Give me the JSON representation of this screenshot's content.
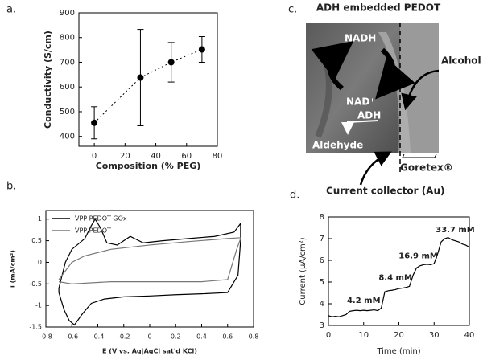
{
  "panels": [
    "a.",
    "b.",
    "c.",
    "d."
  ],
  "diagram": {
    "title": "ADH embedded PEDOT",
    "labels": [
      "NADH",
      "NAD⁺",
      "ADH",
      "Aldehyde",
      "Alcohol",
      "Goretex®",
      "Current collector (Au)"
    ]
  },
  "chart_data": [
    {
      "type": "scatter",
      "x_label": "Composition (% PEG)",
      "y_label": "Conductivity (S/cm)",
      "x": [
        0,
        30,
        50,
        70
      ],
      "values": [
        455,
        638,
        700,
        752
      ],
      "errors": [
        65,
        195,
        80,
        52
      ],
      "color": "#000000",
      "line_style": "dotted",
      "xlim": [
        -10,
        80
      ],
      "xticks": [
        0,
        20,
        40,
        60,
        80
      ],
      "ylim": [
        360,
        900
      ],
      "yticks": [
        400,
        500,
        600,
        700,
        800,
        900
      ]
    },
    {
      "type": "line",
      "x_label": "E (V vs. Ag|AgCl sat'd KCl)",
      "y_label": "i (mA/cm²)",
      "legend": "upper left",
      "series": [
        {
          "name": "VPP PEDOT GOx",
          "color": "#000000",
          "x": [
            -0.7,
            -0.65,
            -0.6,
            -0.5,
            -0.45,
            -0.42,
            -0.38,
            -0.33,
            -0.25,
            -0.15,
            -0.05,
            0.1,
            0.3,
            0.5,
            0.65,
            0.7,
            0.7,
            0.68,
            0.6,
            0.4,
            0.2,
            0,
            -0.2,
            -0.35,
            -0.45,
            -0.52,
            -0.58,
            -0.62,
            -0.66,
            -0.7,
            -0.7
          ],
          "values": [
            -0.6,
            0,
            0.3,
            0.55,
            0.85,
            1.0,
            0.8,
            0.45,
            0.4,
            0.6,
            0.45,
            0.5,
            0.55,
            0.6,
            0.7,
            0.9,
            0.5,
            -0.3,
            -0.7,
            -0.73,
            -0.75,
            -0.78,
            -0.8,
            -0.85,
            -0.95,
            -1.2,
            -1.45,
            -1.35,
            -1.1,
            -0.7,
            -0.6
          ]
        },
        {
          "name": "VPP PEDOT",
          "color": "#777777",
          "x": [
            -0.7,
            -0.6,
            -0.5,
            -0.3,
            0,
            0.3,
            0.6,
            0.7,
            0.7,
            0.67,
            0.6,
            0.4,
            0,
            -0.3,
            -0.6,
            -0.7
          ],
          "values": [
            -0.4,
            0,
            0.15,
            0.3,
            0.4,
            0.48,
            0.55,
            0.57,
            0.55,
            0.3,
            -0.4,
            -0.45,
            -0.45,
            -0.45,
            -0.5,
            -0.45
          ]
        }
      ],
      "xlim": [
        -0.8,
        0.8
      ],
      "xticks": [
        -0.8,
        -0.6,
        -0.4,
        -0.2,
        0,
        0.2,
        0.4,
        0.6,
        0.8
      ],
      "ylim": [
        -1.5,
        1.2
      ],
      "yticks": [
        -1.5,
        -1,
        -0.5,
        0,
        0.5,
        1
      ]
    },
    {
      "type": "line",
      "x_label": "Time (min)",
      "y_label": "Current (μA/cm²)",
      "annotations": [
        "4.2 mM",
        "8.4 mM",
        "16.9 mM",
        "33.7 mM"
      ],
      "series": [
        {
          "color": "#000000",
          "x": [
            0,
            1,
            2,
            3,
            4,
            5,
            6,
            7,
            8,
            9,
            10,
            11,
            12,
            13,
            14,
            15,
            16,
            17,
            18,
            19,
            20,
            21,
            22,
            23,
            24,
            25,
            26,
            27,
            28,
            29,
            30,
            31,
            32,
            33,
            34,
            35,
            36,
            37,
            38,
            39,
            40
          ],
          "values": [
            3.45,
            3.4,
            3.42,
            3.4,
            3.45,
            3.5,
            3.65,
            3.68,
            3.7,
            3.68,
            3.7,
            3.68,
            3.7,
            3.72,
            3.68,
            3.8,
            4.55,
            4.6,
            4.62,
            4.65,
            4.7,
            4.72,
            4.75,
            4.8,
            5.3,
            5.65,
            5.75,
            5.8,
            5.82,
            5.8,
            5.85,
            6.3,
            6.85,
            7.0,
            7.05,
            6.95,
            6.9,
            6.85,
            6.75,
            6.7,
            6.6
          ]
        }
      ],
      "xlim": [
        0,
        40
      ],
      "xticks": [
        0,
        10,
        20,
        30,
        40
      ],
      "ylim": [
        3,
        8
      ],
      "yticks": [
        3,
        4,
        5,
        6,
        7,
        8
      ]
    }
  ]
}
